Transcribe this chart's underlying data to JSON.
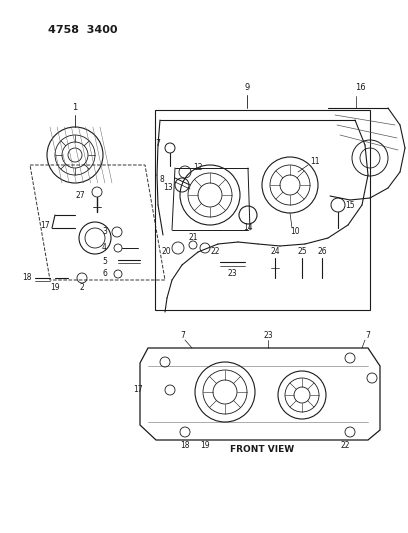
{
  "title": "4758  3400",
  "bg": "#ffffff",
  "lc": "#1a1a1a",
  "tc": "#1a1a1a",
  "figsize": [
    4.08,
    5.33
  ],
  "dpi": 100
}
